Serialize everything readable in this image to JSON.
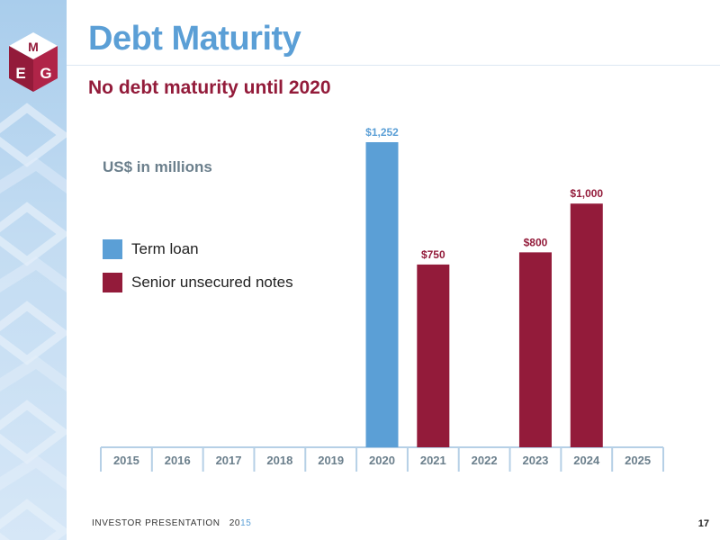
{
  "slide": {
    "title": "Debt Maturity",
    "subtitle": "No debt maturity until 2020",
    "footer_label": "INVESTOR PRESENTATION",
    "footer_year_a": "20",
    "footer_year_b": "15",
    "page_number": "17"
  },
  "brand": {
    "logo_letters": [
      "M",
      "E",
      "G"
    ],
    "title_color": "#5b9fd6",
    "accent_color": "#931b3a"
  },
  "chart_data": {
    "type": "bar",
    "units_label": "US$ in millions",
    "categories": [
      "2015",
      "2016",
      "2017",
      "2018",
      "2019",
      "2020",
      "2021",
      "2022",
      "2023",
      "2024",
      "2025"
    ],
    "series": [
      {
        "name": "Term loan",
        "color": "#5b9fd6",
        "values": [
          0,
          0,
          0,
          0,
          0,
          1252,
          0,
          0,
          0,
          0,
          0
        ],
        "value_labels": [
          null,
          null,
          null,
          null,
          null,
          "$1,252",
          null,
          null,
          null,
          null,
          null
        ]
      },
      {
        "name": "Senior unsecured notes",
        "color": "#931b3a",
        "values": [
          0,
          0,
          0,
          0,
          0,
          0,
          750,
          0,
          800,
          1000,
          0
        ],
        "value_labels": [
          null,
          null,
          null,
          null,
          null,
          null,
          "$750",
          null,
          "$800",
          "$1,000",
          null
        ]
      }
    ],
    "ylim": [
      0,
      1300
    ],
    "grid": false,
    "legend_position": "left"
  }
}
